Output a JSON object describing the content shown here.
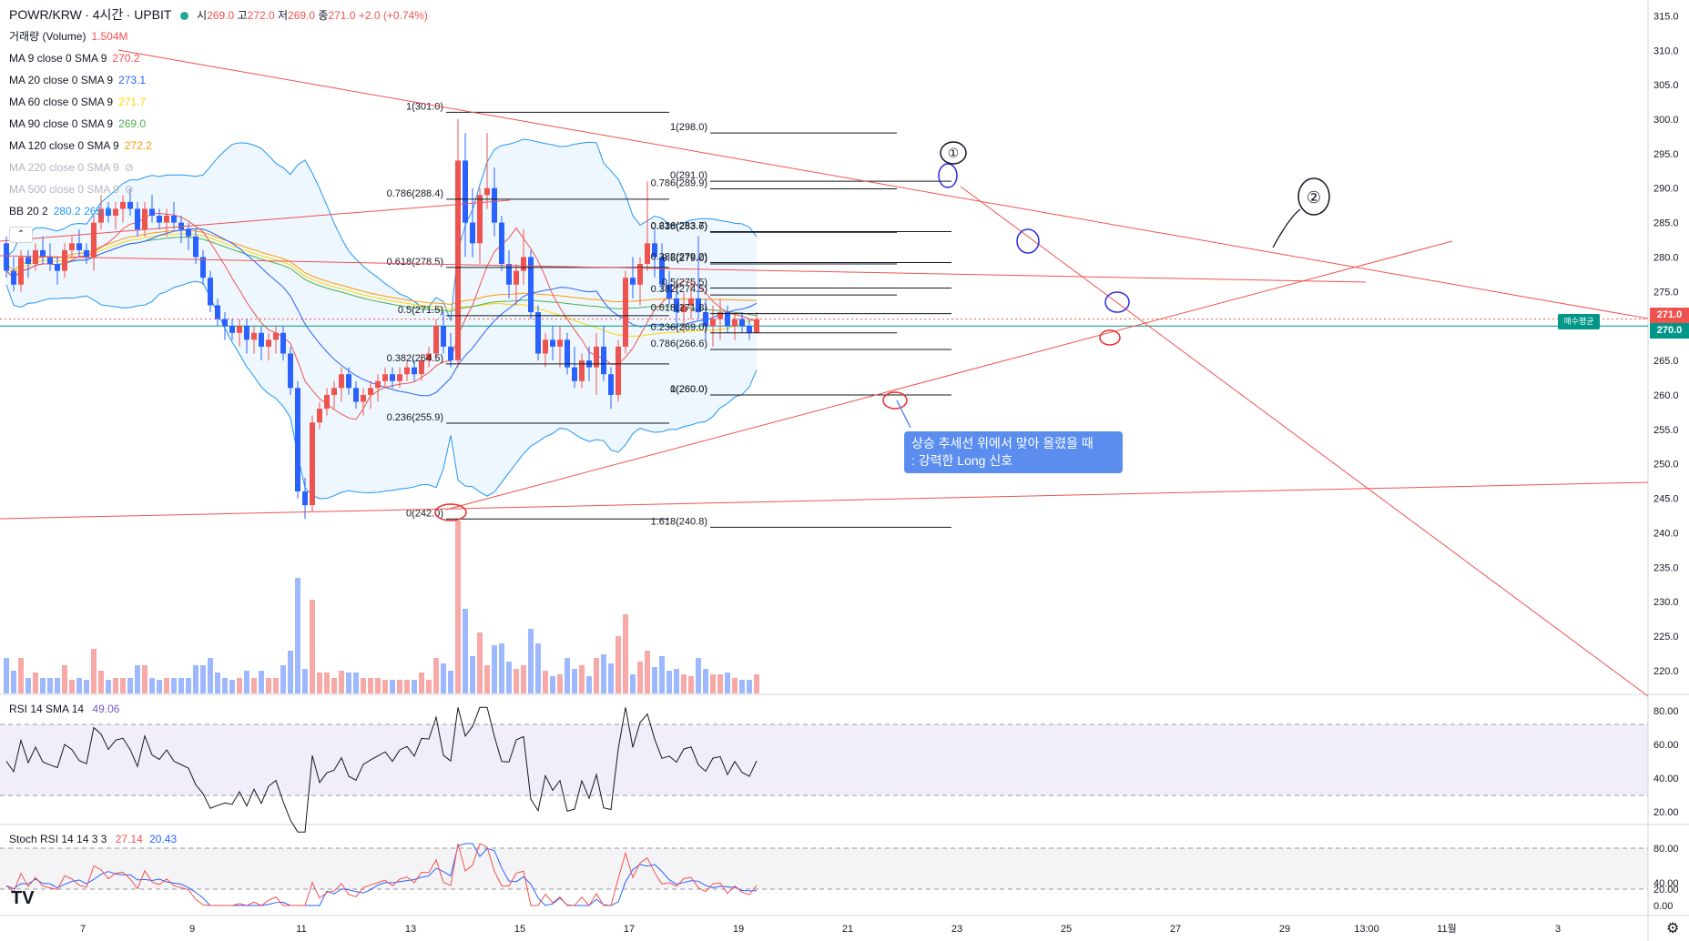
{
  "legend": {
    "symbol": "POWR/KRW",
    "interval": "4시간",
    "exchange": "UPBIT",
    "open_label": "시",
    "open": "269.0",
    "high_label": "고",
    "high": "272.0",
    "low_label": "저",
    "low": "269.0",
    "close_label": "종",
    "close": "271.0",
    "change": "+2.0 (+0.74%)",
    "collapse_icon": "chevron-up-icon",
    "indicators": [
      {
        "name": "거래량 (Volume)",
        "value": "1.504M",
        "color": "#ef5350"
      },
      {
        "name": "MA 9 close 0 SMA 9",
        "value": "270.2",
        "color": "#ef5350"
      },
      {
        "name": "MA 20 close 0 SMA 9",
        "value": "273.1",
        "color": "#2962ff"
      },
      {
        "name": "MA 60 close 0 SMA 9",
        "value": "271.7",
        "color": "#ffd600"
      },
      {
        "name": "MA 90 close 0 SMA 9",
        "value": "269.0",
        "color": "#4caf50"
      },
      {
        "name": "MA 120 close 0 SMA 9",
        "value": "272.2",
        "color": "#ff9800"
      },
      {
        "name": "MA 220 close 0 SMA 9",
        "value": "",
        "color": "#b2b5be",
        "hidden": true
      },
      {
        "name": "MA 500 close 0 SMA 9",
        "value": "",
        "color": "#b2b5be",
        "hidden": true
      },
      {
        "name": "BB 20 2",
        "value": "280.2  265.9",
        "color": "#2196f3"
      }
    ],
    "hidden_icon": "eye-off-icon"
  },
  "rsi_legend": {
    "name": "RSI 14 SMA 14",
    "value": "49.06"
  },
  "stoch_legend": {
    "name": "Stoch RSI 14 14 3 3",
    "k": "27.14",
    "d": "20.43"
  },
  "callout": {
    "line1": "상승 추세선 위에서 맞아 올렸을 때",
    "line2": ": 강력한 Long 신호"
  },
  "avg_tag": "매수평균",
  "price_tags": {
    "last": "271.0",
    "avg": "270.0"
  },
  "annotations": {
    "circle1_label": "①",
    "circle2_label": "②"
  },
  "logo": "TV",
  "settings_icon": "gear-icon",
  "chart_data": {
    "type": "candlestick",
    "price_axis": {
      "ticks": [
        "315.0",
        "310.0",
        "305.0",
        "300.0",
        "295.0",
        "290.0",
        "285.0",
        "280.0",
        "275.0",
        "270.0",
        "265.0",
        "260.0",
        "255.0",
        "250.0",
        "245.0",
        "240.0",
        "235.0",
        "230.0",
        "225.0",
        "220.0"
      ],
      "ylim": [
        216,
        317
      ]
    },
    "time_axis": {
      "ticks": [
        "7",
        "9",
        "11",
        "13",
        "15",
        "17",
        "19",
        "21",
        "23",
        "25",
        "27",
        "29",
        "13:00",
        "11월",
        "3"
      ]
    },
    "rsi_axis": {
      "ticks": [
        "80.00",
        "60.00",
        "40.00",
        "20.00"
      ]
    },
    "stoch_axis": {
      "ticks": [
        "80.00",
        "40.00",
        "20.00",
        "0.00"
      ]
    },
    "candles": [
      [
        282,
        283,
        277,
        278
      ],
      [
        278,
        280,
        275,
        276
      ],
      [
        276,
        281,
        275,
        280
      ],
      [
        280,
        281,
        277,
        279
      ],
      [
        279,
        282,
        278,
        281
      ],
      [
        281,
        283,
        279,
        280
      ],
      [
        280,
        282,
        278,
        279
      ],
      [
        279,
        280,
        276,
        278
      ],
      [
        278,
        282,
        277,
        281
      ],
      [
        281,
        283,
        280,
        282
      ],
      [
        282,
        284,
        280,
        281
      ],
      [
        281,
        282,
        279,
        280
      ],
      [
        280,
        286,
        278,
        285
      ],
      [
        285,
        289,
        284,
        287
      ],
      [
        287,
        288,
        285,
        286
      ],
      [
        286,
        288,
        284,
        287
      ],
      [
        287,
        289,
        285,
        288
      ],
      [
        288,
        290,
        286,
        287
      ],
      [
        287,
        288,
        283,
        284
      ],
      [
        284,
        288,
        283,
        287
      ],
      [
        287,
        289,
        285,
        286
      ],
      [
        286,
        287,
        284,
        285
      ],
      [
        285,
        287,
        283,
        286
      ],
      [
        286,
        288,
        284,
        285
      ],
      [
        285,
        286,
        282,
        284
      ],
      [
        284,
        285,
        281,
        283
      ],
      [
        283,
        284,
        279,
        280
      ],
      [
        280,
        281,
        276,
        277
      ],
      [
        277,
        278,
        272,
        273
      ],
      [
        273,
        274,
        270,
        271
      ],
      [
        271,
        272,
        268,
        270
      ],
      [
        270,
        271,
        268,
        269
      ],
      [
        269,
        271,
        267,
        270
      ],
      [
        270,
        271,
        266,
        268
      ],
      [
        268,
        270,
        266,
        269
      ],
      [
        269,
        270,
        265,
        267
      ],
      [
        267,
        269,
        265,
        268
      ],
      [
        268,
        270,
        266,
        269
      ],
      [
        269,
        270,
        265,
        266
      ],
      [
        266,
        267,
        260,
        261
      ],
      [
        261,
        262,
        245,
        246
      ],
      [
        246,
        248,
        242,
        244
      ],
      [
        244,
        257,
        243,
        256
      ],
      [
        256,
        259,
        255,
        258
      ],
      [
        258,
        261,
        257,
        260
      ],
      [
        260,
        262,
        258,
        261
      ],
      [
        261,
        264,
        259,
        263
      ],
      [
        263,
        264,
        260,
        261
      ],
      [
        261,
        262,
        258,
        259
      ],
      [
        259,
        261,
        257,
        260
      ],
      [
        260,
        262,
        258,
        261
      ],
      [
        261,
        263,
        259,
        262
      ],
      [
        262,
        264,
        261,
        263
      ],
      [
        263,
        264,
        261,
        262
      ],
      [
        262,
        264,
        261,
        263
      ],
      [
        263,
        265,
        262,
        264
      ],
      [
        264,
        265,
        262,
        263
      ],
      [
        263,
        266,
        262,
        265
      ],
      [
        265,
        267,
        264,
        266
      ],
      [
        266,
        271,
        265,
        270
      ],
      [
        270,
        272,
        266,
        267
      ],
      [
        267,
        269,
        264,
        265
      ],
      [
        265,
        300,
        264,
        294
      ],
      [
        294,
        298,
        280,
        285
      ],
      [
        285,
        290,
        280,
        282
      ],
      [
        282,
        290,
        279,
        289
      ],
      [
        289,
        298,
        287,
        290
      ],
      [
        290,
        293,
        283,
        285
      ],
      [
        285,
        286,
        278,
        279
      ],
      [
        279,
        281,
        274,
        276
      ],
      [
        276,
        279,
        273,
        278
      ],
      [
        278,
        284,
        276,
        280
      ],
      [
        280,
        281,
        271,
        272
      ],
      [
        272,
        273,
        265,
        266
      ],
      [
        266,
        269,
        264,
        268
      ],
      [
        268,
        270,
        265,
        267
      ],
      [
        267,
        270,
        264,
        268
      ],
      [
        268,
        269,
        263,
        264
      ],
      [
        264,
        267,
        261,
        262
      ],
      [
        262,
        266,
        261,
        265
      ],
      [
        265,
        267,
        262,
        264
      ],
      [
        264,
        269,
        260,
        267
      ],
      [
        267,
        270,
        262,
        263
      ],
      [
        263,
        264,
        258,
        260
      ],
      [
        260,
        268,
        259,
        267
      ],
      [
        267,
        278,
        266,
        277
      ],
      [
        277,
        280,
        274,
        276
      ],
      [
        276,
        280,
        273,
        279
      ],
      [
        279,
        291,
        278,
        282
      ],
      [
        282,
        284,
        277,
        280
      ],
      [
        280,
        282,
        275,
        276
      ],
      [
        276,
        278,
        273,
        274
      ],
      [
        274,
        276,
        270,
        272
      ],
      [
        272,
        275,
        269,
        273
      ],
      [
        273,
        276,
        271,
        274
      ],
      [
        274,
        283,
        271,
        272
      ],
      [
        272,
        274,
        268,
        270
      ],
      [
        270,
        273,
        267,
        271
      ],
      [
        271,
        274,
        268,
        272
      ],
      [
        272,
        273,
        269,
        270
      ],
      [
        270,
        272,
        268,
        271
      ],
      [
        271,
        272,
        269,
        270
      ],
      [
        270,
        271,
        268,
        269
      ],
      [
        269,
        272,
        269,
        271
      ]
    ],
    "volume_unit": "M",
    "fibonacci": [
      {
        "levels": [
          [
            "1(301.0)",
            301.0
          ],
          [
            "0.786(288.4)",
            288.4
          ],
          [
            "0.618(278.5)",
            278.5
          ],
          [
            "0.5(271.5)",
            271.5
          ],
          [
            "0.382(264.5)",
            264.5
          ],
          [
            "0.236(255.9)",
            255.9
          ],
          [
            "0(242.0)",
            242.0
          ]
        ]
      },
      {
        "levels": [
          [
            "1(298.0)",
            298.0
          ],
          [
            "0.786(289.9)",
            289.9
          ],
          [
            "0.618(283.6)",
            283.6
          ],
          [
            "0.5(279.0)",
            279.0
          ],
          [
            "0.382(274.5)",
            274.5
          ],
          [
            "0.236(269.0)",
            269.0
          ],
          [
            "0(260.0)",
            260.0
          ]
        ]
      },
      {
        "levels": [
          [
            "0(291.0)",
            291.0
          ],
          [
            "0.236(283.7)",
            283.7
          ],
          [
            "0.382(279.2)",
            279.2
          ],
          [
            "0.5(275.5)",
            275.5
          ],
          [
            "0.618(271.8)",
            271.8
          ],
          [
            "0.786(266.6)",
            266.6
          ],
          [
            "1(260.0)",
            260.0
          ],
          [
            "1.618(240.8)",
            240.8
          ]
        ]
      }
    ]
  }
}
